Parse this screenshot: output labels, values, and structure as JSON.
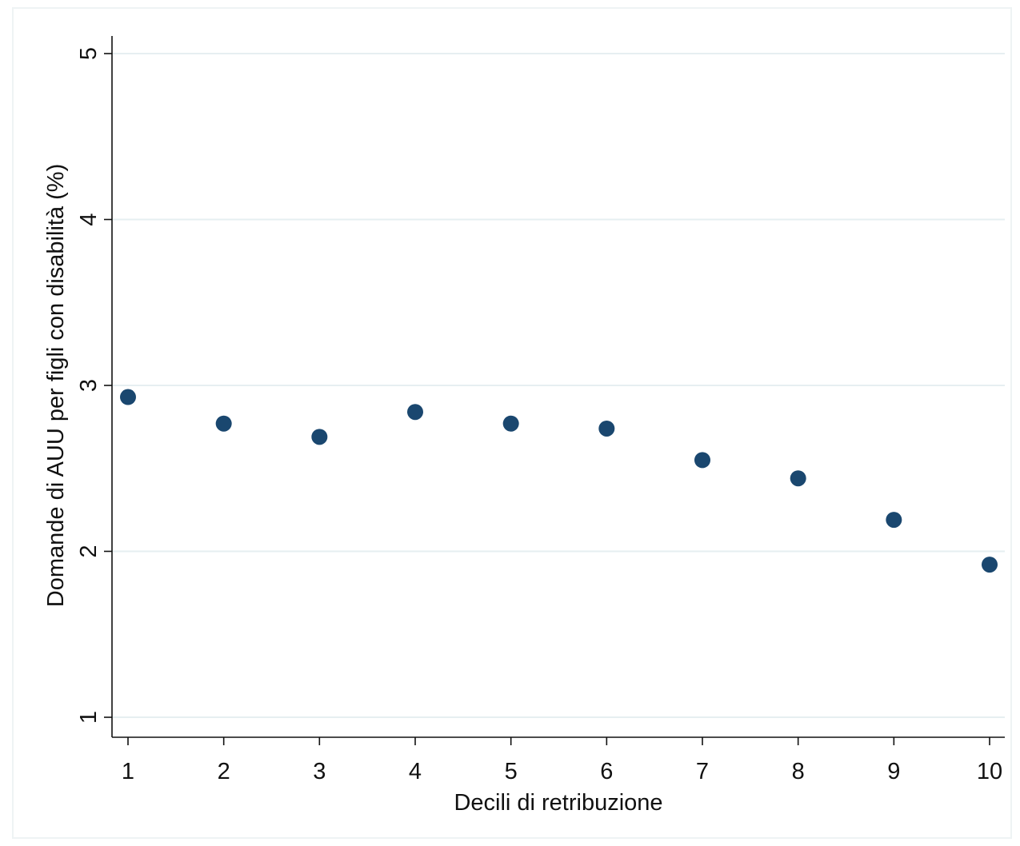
{
  "chart_data": {
    "type": "scatter",
    "title": "",
    "xlabel": "Decili di retribuzione",
    "ylabel": "Domande di AUU per figli con disabilità (%)",
    "x": [
      1,
      2,
      3,
      4,
      5,
      6,
      7,
      8,
      9,
      10
    ],
    "series": [
      {
        "values": [
          2.93,
          2.77,
          2.69,
          2.84,
          2.77,
          2.74,
          2.55,
          2.44,
          2.19,
          1.92
        ]
      }
    ],
    "xticks": [
      1,
      2,
      3,
      4,
      5,
      6,
      7,
      8,
      9,
      10
    ],
    "xtick_labels": [
      "1",
      "2",
      "3",
      "4",
      "5",
      "6",
      "7",
      "8",
      "9",
      "10"
    ],
    "yticks": [
      1,
      2,
      3,
      4,
      5
    ],
    "ytick_labels": [
      "1",
      "2",
      "3",
      "4",
      "5"
    ],
    "xlim": [
      0.82,
      10.18
    ],
    "ylim": [
      0.88,
      5.1
    ],
    "grid": true,
    "legend": "none",
    "colors": {
      "marker": "#1a476f",
      "grid": "#e6eff1",
      "axis": "#111111"
    }
  }
}
